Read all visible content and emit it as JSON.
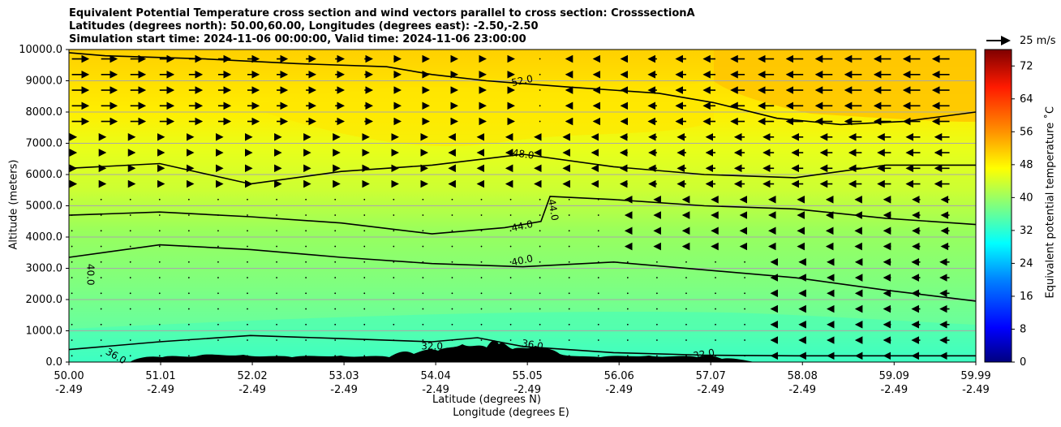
{
  "title": {
    "line1": "Equivalent Potential Temperature cross section and wind vectors parallel to cross section: CrosssectionA",
    "line2": "Latitudes (degrees north): 50.00,60.00, Longitudes (degrees east): -2.50,-2.50",
    "line3": "Simulation start time: 2024-11-06 00:00:00, Valid time: 2024-11-06 23:00:00"
  },
  "vector_key": {
    "label": "25 m/s"
  },
  "colorbar": {
    "label": "Equivalent potential temperature ˚C"
  },
  "chart_data": {
    "type": "heatmap",
    "title": "Equivalent Potential Temperature cross section and wind vectors parallel to cross section: CrosssectionA",
    "xlabel": "Latitude (degrees N)",
    "xlabel2": "Longitude (degrees E)",
    "ylabel": "Altitude (meters)",
    "ylim": [
      0,
      10000
    ],
    "xlim": [
      50.0,
      59.99
    ],
    "y_ticks": [
      "0.0",
      "1000.0",
      "2000.0",
      "3000.0",
      "4000.0",
      "5000.0",
      "6000.0",
      "7000.0",
      "8000.0",
      "9000.0",
      "10000.0"
    ],
    "x_ticks": [
      {
        "lat": "50.00",
        "lon": "-2.49"
      },
      {
        "lat": "51.01",
        "lon": "-2.49"
      },
      {
        "lat": "52.02",
        "lon": "-2.49"
      },
      {
        "lat": "53.03",
        "lon": "-2.49"
      },
      {
        "lat": "54.04",
        "lon": "-2.49"
      },
      {
        "lat": "55.05",
        "lon": "-2.49"
      },
      {
        "lat": "56.06",
        "lon": "-2.49"
      },
      {
        "lat": "57.07",
        "lon": "-2.49"
      },
      {
        "lat": "58.08",
        "lon": "-2.49"
      },
      {
        "lat": "59.09",
        "lon": "-2.49"
      },
      {
        "lat": "59.99",
        "lon": "-2.49"
      }
    ],
    "colorbar_ticks": [
      "0",
      "8",
      "16",
      "24",
      "32",
      "40",
      "48",
      "56",
      "64",
      "72"
    ],
    "colorbar_range": [
      0,
      76
    ],
    "contour_labels": [
      "52.0",
      "48.0",
      "44.0",
      "44.0",
      "40.0",
      "40.0",
      "36.0",
      "36.0",
      "32.0",
      "32.0"
    ],
    "contours": [
      {
        "level": 52,
        "points": [
          [
            50.0,
            9900
          ],
          [
            50.4,
            9800
          ],
          [
            51.5,
            9700
          ],
          [
            52.5,
            9550
          ],
          [
            53.5,
            9450
          ],
          [
            54.0,
            9200
          ],
          [
            54.6,
            9000
          ],
          [
            55.5,
            8800
          ],
          [
            56.5,
            8600
          ],
          [
            57.1,
            8300
          ],
          [
            57.8,
            7800
          ],
          [
            58.5,
            7600
          ],
          [
            59.2,
            7700
          ],
          [
            59.99,
            8000
          ]
        ]
      },
      {
        "level": 48,
        "points": [
          [
            50.0,
            6200
          ],
          [
            51.0,
            6350
          ],
          [
            52.0,
            5700
          ],
          [
            53.0,
            6100
          ],
          [
            54.0,
            6300
          ],
          [
            55.0,
            6650
          ],
          [
            56.0,
            6250
          ],
          [
            57.0,
            6000
          ],
          [
            58.0,
            5900
          ],
          [
            59.0,
            6300
          ],
          [
            59.99,
            6300
          ]
        ]
      },
      {
        "level": 44,
        "points": [
          [
            50.0,
            4700
          ],
          [
            51.0,
            4800
          ],
          [
            52.0,
            4650
          ],
          [
            53.0,
            4450
          ],
          [
            54.0,
            4100
          ],
          [
            54.8,
            4300
          ],
          [
            55.2,
            4500
          ],
          [
            55.3,
            5300
          ],
          [
            56.0,
            5200
          ],
          [
            57.0,
            5000
          ],
          [
            58.0,
            4900
          ],
          [
            59.0,
            4600
          ],
          [
            59.99,
            4400
          ]
        ]
      },
      {
        "level": 40,
        "points": [
          [
            50.0,
            3350
          ],
          [
            51.0,
            3750
          ],
          [
            52.0,
            3600
          ],
          [
            53.0,
            3350
          ],
          [
            54.0,
            3150
          ],
          [
            55.0,
            3050
          ],
          [
            56.0,
            3200
          ],
          [
            57.0,
            2950
          ],
          [
            58.0,
            2700
          ],
          [
            59.0,
            2300
          ],
          [
            59.99,
            1950
          ]
        ]
      },
      {
        "level": 36,
        "points": [
          [
            50.0,
            400
          ],
          [
            51.0,
            650
          ],
          [
            52.0,
            850
          ],
          [
            53.0,
            750
          ],
          [
            54.0,
            650
          ],
          [
            54.5,
            780
          ],
          [
            55.0,
            500
          ],
          [
            56.0,
            300
          ],
          [
            57.0,
            220
          ],
          [
            58.0,
            200
          ],
          [
            59.99,
            200
          ]
        ]
      }
    ],
    "wind_vector_note": "Wind vectors parallel to the cross section; westerly-positive to the right in upper-left, leftward toward the right side at upper levels."
  }
}
